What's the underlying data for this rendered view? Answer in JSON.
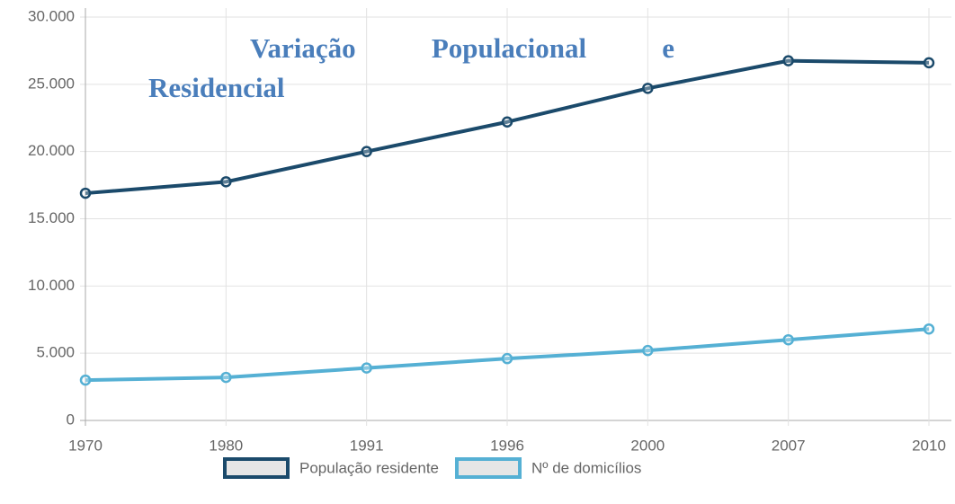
{
  "chart_data": {
    "type": "line",
    "title": "Variação Populacional e Residencial",
    "categories": [
      "1970",
      "1980",
      "1991",
      "1996",
      "2000",
      "2007",
      "2010"
    ],
    "series": [
      {
        "name": "População residente",
        "color": "#1b4a6b",
        "values": [
          16900,
          17750,
          20000,
          22200,
          24700,
          26750,
          26600
        ]
      },
      {
        "name": "Nº de domicílios",
        "color": "#55b0d4",
        "values": [
          3000,
          3200,
          3900,
          4600,
          5200,
          6000,
          6800
        ]
      }
    ],
    "ylim": [
      0,
      30000
    ],
    "yticks": [
      0,
      {
        "value": 5000,
        "label": "5.000"
      },
      {
        "value": 10000,
        "label": "10.000"
      },
      {
        "value": 15000,
        "label": "15.000"
      },
      {
        "value": 20000,
        "label": "20.000"
      },
      {
        "value": 25000,
        "label": "25.000"
      },
      {
        "value": 30000,
        "label": "30.000"
      }
    ],
    "grid": true,
    "legend": "bottom"
  }
}
